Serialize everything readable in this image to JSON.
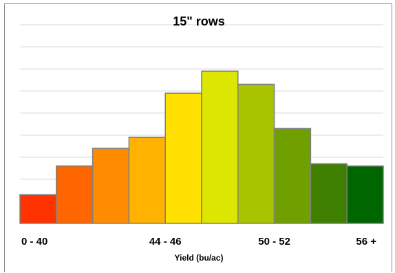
{
  "chart_data": {
    "type": "bar",
    "title": "15\" rows",
    "xlabel": "Yield (bu/ac)",
    "ylabel": "",
    "categories": [
      "0 - 40",
      "",
      "",
      "44 - 46",
      "",
      "",
      "50 - 52",
      "",
      "",
      "56 +"
    ],
    "values": [
      1.3,
      2.6,
      3.4,
      3.9,
      5.9,
      6.9,
      6.3,
      4.3,
      2.7,
      2.6
    ],
    "ylim": [
      0,
      9
    ],
    "grid": true,
    "legend": "none",
    "colors": [
      "#ff3300",
      "#ff6600",
      "#ff8c00",
      "#ffb300",
      "#ffe000",
      "#dde600",
      "#a8c400",
      "#6fa000",
      "#3f7f00",
      "#006600"
    ],
    "bar_edge_color": "#7f7f7f",
    "gridline_color": "#d9d9d9"
  }
}
